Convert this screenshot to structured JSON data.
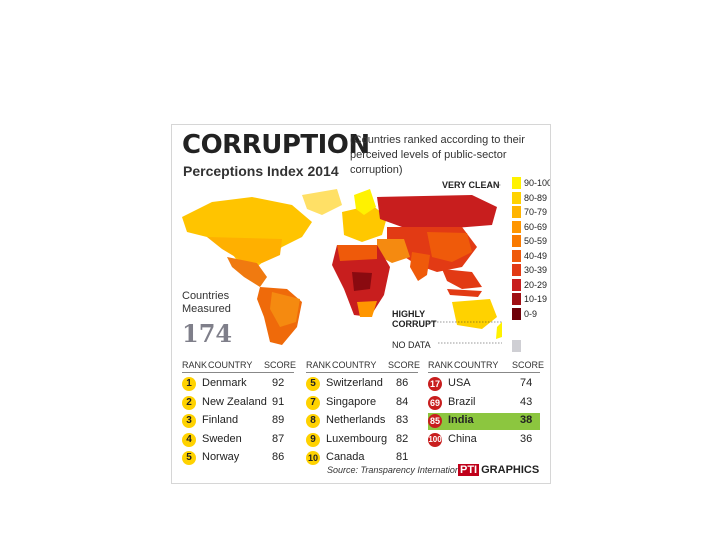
{
  "title": "CORRUPTION",
  "subtitle": "Perceptions Index 2014",
  "description": "(Countries ranked according to their perceived levels of public-sector corruption)",
  "map_labels": {
    "very_clean": "VERY CLEAN",
    "highly_corrupt": "HIGHLY CORRUPT",
    "no_data": "NO DATA"
  },
  "countries_measured_label": "Countries Measured",
  "countries_measured_value": "174",
  "legend": [
    {
      "label": "90-100",
      "color": "#fff200"
    },
    {
      "label": "80-89",
      "color": "#ffd200"
    },
    {
      "label": "70-79",
      "color": "#ffb400"
    },
    {
      "label": "60-69",
      "color": "#ff9600"
    },
    {
      "label": "50-59",
      "color": "#f97a00"
    },
    {
      "label": "40-49",
      "color": "#ef5a0a"
    },
    {
      "label": "30-39",
      "color": "#e23a14"
    },
    {
      "label": "20-29",
      "color": "#c81e1e"
    },
    {
      "label": "10-19",
      "color": "#a00f14"
    },
    {
      "label": "0-9",
      "color": "#6e0008"
    }
  ],
  "table_headers": {
    "rank": "RANK",
    "country": "COUNTRY",
    "score": "SCORE"
  },
  "tables": [
    {
      "rows": [
        {
          "rank": "1",
          "country": "Denmark",
          "score": "92"
        },
        {
          "rank": "2",
          "country": "New Zealand",
          "score": "91"
        },
        {
          "rank": "3",
          "country": "Finland",
          "score": "89"
        },
        {
          "rank": "4",
          "country": "Sweden",
          "score": "87"
        },
        {
          "rank": "5",
          "country": "Norway",
          "score": "86"
        }
      ]
    },
    {
      "rows": [
        {
          "rank": "5",
          "country": "Switzerland",
          "score": "86"
        },
        {
          "rank": "7",
          "country": "Singapore",
          "score": "84"
        },
        {
          "rank": "8",
          "country": "Netherlands",
          "score": "83"
        },
        {
          "rank": "9",
          "country": "Luxembourg",
          "score": "82"
        },
        {
          "rank": "10",
          "country": "Canada",
          "score": "81"
        }
      ]
    },
    {
      "rows": [
        {
          "rank": "17",
          "country": "USA",
          "score": "74"
        },
        {
          "rank": "69",
          "country": "Brazil",
          "score": "43"
        },
        {
          "rank": "85",
          "country": "India",
          "score": "38",
          "highlight": true
        },
        {
          "rank": "100",
          "country": "China",
          "score": "36"
        }
      ]
    }
  ],
  "colors": {
    "badge_yellow": "#ffd200",
    "badge_red": "#c81e1e",
    "highlight_green": "#8cc63f"
  },
  "source": "Source: Transparency International",
  "brand": {
    "pti": "PTI",
    "graphics": "GRAPHICS"
  }
}
